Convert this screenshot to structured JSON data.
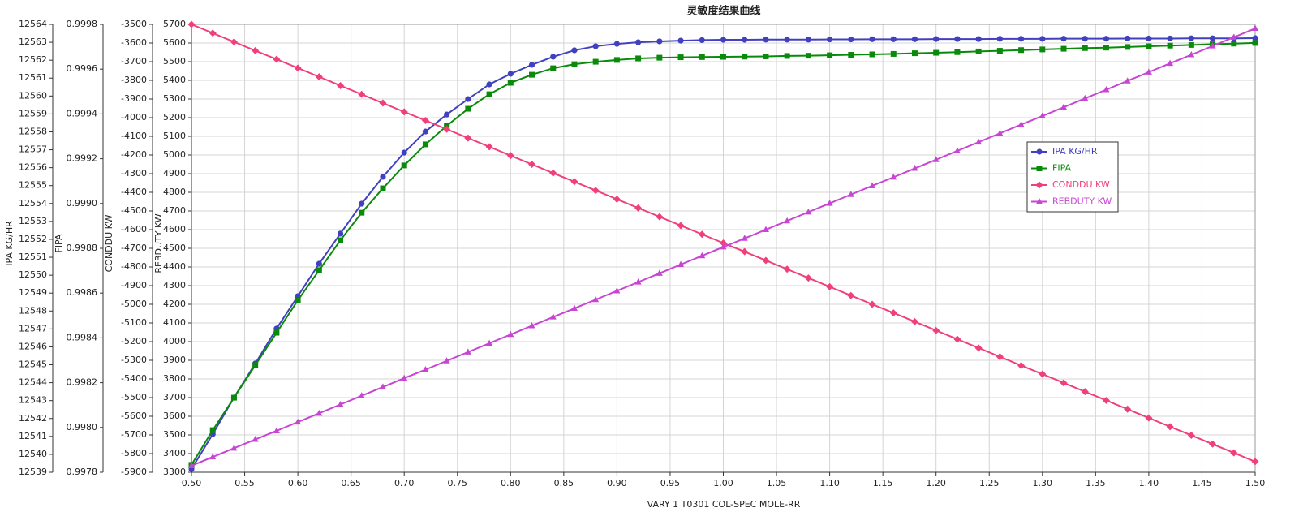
{
  "chart_data": {
    "type": "line",
    "title": "灵敏度结果曲线",
    "xlabel": "VARY    1 T0301 COL-SPEC MOLE-RR",
    "x": [
      0.5,
      0.52,
      0.54,
      0.56,
      0.58,
      0.6,
      0.62,
      0.64,
      0.66,
      0.68,
      0.7,
      0.72,
      0.74,
      0.76,
      0.78,
      0.8,
      0.82,
      0.84,
      0.86,
      0.88,
      0.9,
      0.92,
      0.94,
      0.96,
      0.98,
      1.0,
      1.02,
      1.04,
      1.06,
      1.08,
      1.1,
      1.12,
      1.14,
      1.16,
      1.18,
      1.2,
      1.22,
      1.24,
      1.26,
      1.28,
      1.3,
      1.32,
      1.34,
      1.36,
      1.38,
      1.4,
      1.42,
      1.44,
      1.46,
      1.48,
      1.5
    ],
    "xlim": [
      0.5,
      1.5
    ],
    "xticks": [
      {
        "value": 0.5,
        "label": "0.50"
      },
      {
        "value": 0.55,
        "label": "0.55"
      },
      {
        "value": 0.6,
        "label": "0.60"
      },
      {
        "value": 0.65,
        "label": "0.65"
      },
      {
        "value": 0.7,
        "label": "0.70"
      },
      {
        "value": 0.75,
        "label": "0.75"
      },
      {
        "value": 0.8,
        "label": "0.80"
      },
      {
        "value": 0.85,
        "label": "0.85"
      },
      {
        "value": 0.9,
        "label": "0.90"
      },
      {
        "value": 0.95,
        "label": "0.95"
      },
      {
        "value": 1.0,
        "label": "1.00"
      },
      {
        "value": 1.05,
        "label": "1.05"
      },
      {
        "value": 1.1,
        "label": "1.10"
      },
      {
        "value": 1.15,
        "label": "1.15"
      },
      {
        "value": 1.2,
        "label": "1.20"
      },
      {
        "value": 1.25,
        "label": "1.25"
      },
      {
        "value": 1.3,
        "label": "1.30"
      },
      {
        "value": 1.35,
        "label": "1.35"
      },
      {
        "value": 1.4,
        "label": "1.40"
      },
      {
        "value": 1.45,
        "label": "1.45"
      },
      {
        "value": 1.5,
        "label": "1.50"
      }
    ],
    "ylabel": "IPA KG/HR",
    "ylim": [
      12539,
      12564
    ],
    "yticks": [
      12539,
      12540,
      12541,
      12542,
      12543,
      12544,
      12545,
      12546,
      12547,
      12548,
      12549,
      12550,
      12551,
      12552,
      12553,
      12554,
      12555,
      12556,
      12557,
      12558,
      12559,
      12560,
      12561,
      12562,
      12563,
      12564
    ],
    "y2label": "FIPA",
    "y2lim": [
      0.9978,
      0.9998
    ],
    "y2ticks": [
      0.9978,
      {
        "value": 0.998,
        "label": "0.9980"
      },
      0.9982,
      0.9984,
      0.9986,
      0.9988,
      {
        "value": 0.999,
        "label": "0.9990"
      },
      0.9992,
      0.9994,
      0.9996,
      0.9998
    ],
    "y3label": "CONDDU KW",
    "y3lim": [
      -5900,
      -3500
    ],
    "y3ticks": [
      -5900,
      -5800,
      -5700,
      -5600,
      -5500,
      -5400,
      -5300,
      -5200,
      -5100,
      -5000,
      -4900,
      -4800,
      -4700,
      -4600,
      -4500,
      -4400,
      -4300,
      -4200,
      -4100,
      -4000,
      -3900,
      -3800,
      -3700,
      -3600,
      -3500
    ],
    "y4label": "REBDUTY KW",
    "y4lim": [
      3300,
      5700
    ],
    "y4ticks": [
      3300,
      3400,
      3500,
      3600,
      3700,
      3800,
      3900,
      4000,
      4100,
      4200,
      4300,
      4400,
      4500,
      4600,
      4700,
      4800,
      4900,
      5000,
      5100,
      5200,
      5300,
      5400,
      5500,
      5600,
      5700
    ],
    "grid": true,
    "legend": "right",
    "series": [
      {
        "name": "IPA KG/HR",
        "color": "#4040c0",
        "marker": "circle",
        "axis": "y",
        "values": [
          12539.18,
          12541.13,
          12543.17,
          12545.07,
          12547.02,
          12548.83,
          12550.64,
          12552.32,
          12553.99,
          12555.49,
          12556.84,
          12558.02,
          12558.97,
          12559.83,
          12560.65,
          12561.24,
          12561.74,
          12562.19,
          12562.55,
          12562.78,
          12562.91,
          12563.0,
          12563.05,
          12563.09,
          12563.12,
          12563.14,
          12563.14,
          12563.15,
          12563.15,
          12563.15,
          12563.16,
          12563.16,
          12563.17,
          12563.17,
          12563.17,
          12563.18,
          12563.18,
          12563.18,
          12563.19,
          12563.19,
          12563.19,
          12563.2,
          12563.2,
          12563.2,
          12563.21,
          12563.21,
          12563.21,
          12563.22,
          12563.22,
          12563.22,
          12563.23
        ]
      },
      {
        "name": "FIPA",
        "color": "#0a8a0a",
        "marker": "square",
        "axis": "y2",
        "values": [
          0.997833,
          0.997988,
          0.998133,
          0.998278,
          0.998423,
          0.998568,
          0.998702,
          0.998836,
          0.998959,
          0.999068,
          0.99917,
          0.999264,
          0.999347,
          0.999423,
          0.999488,
          0.999539,
          0.999575,
          0.999604,
          0.999622,
          0.999633,
          0.999641,
          0.999648,
          0.999651,
          0.999653,
          0.999654,
          0.999655,
          0.999656,
          0.999657,
          0.999659,
          0.99966,
          0.999662,
          0.999664,
          0.999666,
          0.999668,
          0.999671,
          0.999673,
          0.999676,
          0.999679,
          0.999682,
          0.999685,
          0.999688,
          0.999691,
          0.999694,
          0.999696,
          0.999699,
          0.999702,
          0.999705,
          0.999708,
          0.999711,
          0.999714,
          0.999717
        ]
      },
      {
        "name": "CONDDU KW",
        "color": "#f0407a",
        "marker": "diamond",
        "axis": "y3",
        "values": [
          -3500,
          -3547,
          -3594,
          -3641,
          -3687,
          -3734,
          -3781,
          -3828,
          -3875,
          -3922,
          -3969,
          -4015,
          -4062,
          -4109,
          -4156,
          -4203,
          -4250,
          -4297,
          -4343,
          -4390,
          -4437,
          -4484,
          -4531,
          -4578,
          -4625,
          -4672,
          -4718,
          -4765,
          -4812,
          -4859,
          -4906,
          -4953,
          -5000,
          -5046,
          -5093,
          -5140,
          -5187,
          -5234,
          -5281,
          -5328,
          -5374,
          -5421,
          -5468,
          -5515,
          -5562,
          -5609,
          -5656,
          -5702,
          -5749,
          -5796,
          -5843
        ]
      },
      {
        "name": "REBDUTY KW",
        "color": "#c845d4",
        "marker": "triangle",
        "axis": "y4",
        "values": [
          3335,
          3382,
          3429,
          3476,
          3522,
          3569,
          3616,
          3663,
          3710,
          3757,
          3804,
          3850,
          3897,
          3944,
          3991,
          4038,
          4085,
          4132,
          4178,
          4225,
          4272,
          4319,
          4366,
          4413,
          4460,
          4507,
          4553,
          4600,
          4647,
          4694,
          4741,
          4788,
          4835,
          4881,
          4928,
          4975,
          5022,
          5069,
          5116,
          5163,
          5209,
          5256,
          5303,
          5350,
          5397,
          5444,
          5491,
          5537,
          5584,
          5631,
          5678
        ]
      }
    ]
  }
}
